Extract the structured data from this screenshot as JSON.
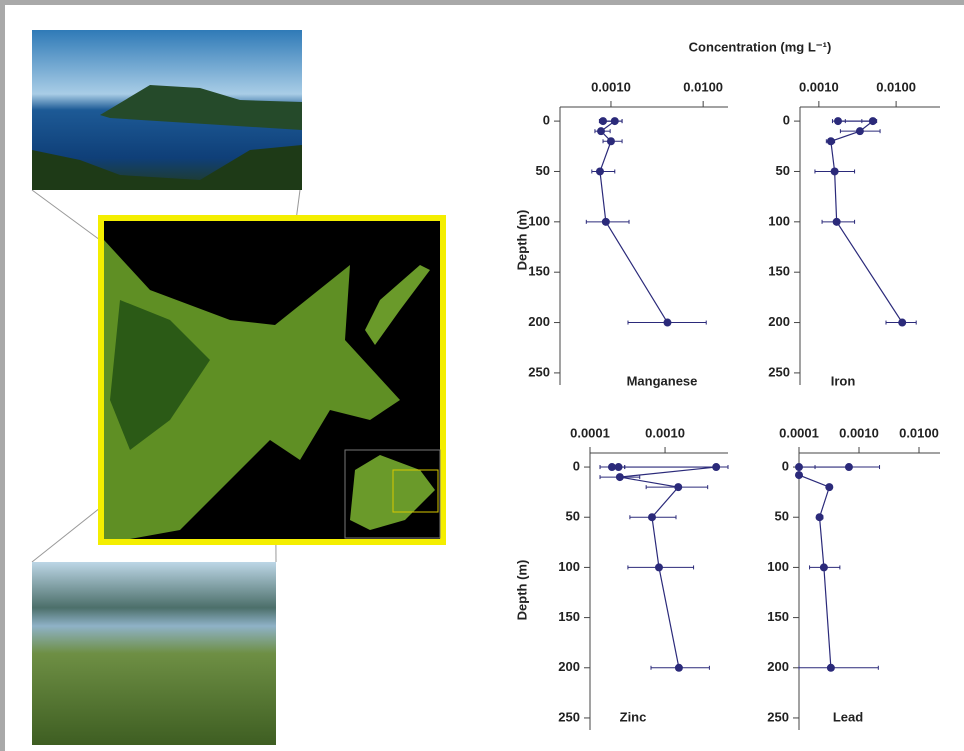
{
  "chart_data": [
    {
      "type": "scatter",
      "title": "Manganese",
      "xlabel": "Concentration (mg L⁻¹)",
      "ylabel": "Depth (m)",
      "log_x": true,
      "color": "#2b2a7a",
      "xlim": [
        0.00028,
        0.0186
      ],
      "xticks": [
        {
          "value": 0.001,
          "label": "0.0010"
        },
        {
          "value": 0.01,
          "label": "0.0100"
        }
      ],
      "ylim": [
        -14,
        262
      ],
      "yticks": [
        0,
        50,
        100,
        150,
        200,
        250
      ],
      "x": [
        0.00082,
        0.0011,
        0.00078,
        0.001,
        0.00076,
        0.00088,
        0.0041
      ],
      "values": [
        0,
        0,
        10,
        20,
        50,
        100,
        200
      ],
      "err_low": [
        0.00075,
        0.00075,
        0.00067,
        0.00082,
        0.00062,
        0.00054,
        0.00153
      ],
      "err_high": [
        0.00132,
        0.00132,
        0.00098,
        0.00132,
        0.0011,
        0.00157,
        0.0108
      ]
    },
    {
      "type": "scatter",
      "title": "Iron",
      "log_x": true,
      "color": "#2b2a7a",
      "xlim": [
        0.00057,
        0.037
      ],
      "xticks": [
        {
          "value": 0.001,
          "label": "0.0010"
        },
        {
          "value": 0.01,
          "label": "0.0100"
        }
      ],
      "ylim": [
        -14,
        262
      ],
      "yticks": [
        0,
        50,
        100,
        150,
        200,
        250
      ],
      "x": [
        0.00177,
        0.005,
        0.0034,
        0.00143,
        0.0016,
        0.0017,
        0.012
      ],
      "values": [
        0,
        0,
        10,
        20,
        50,
        100,
        200
      ],
      "err_low": [
        0.0015,
        0.0036,
        0.0019,
        0.00125,
        0.00089,
        0.0011,
        0.0074
      ],
      "err_high": [
        0.0022,
        0.0056,
        0.0062,
        0.0016,
        0.0029,
        0.0029,
        0.0182
      ]
    },
    {
      "type": "scatter",
      "title": "Zinc",
      "ylabel": "Depth (m)",
      "log_x": true,
      "color": "#2b2a7a",
      "xlim": [
        0.0001,
        0.0069
      ],
      "xticks": [
        {
          "value": 0.0001,
          "label": "0.0001"
        },
        {
          "value": 0.001,
          "label": "0.0010"
        }
      ],
      "ylim": [
        -14,
        262
      ],
      "yticks": [
        0,
        50,
        100,
        150,
        200,
        250
      ],
      "x": [
        0.000196,
        0.00024,
        0.0048,
        0.00025,
        0.0015,
        0.00067,
        0.00083,
        0.00153
      ],
      "values": [
        0,
        0,
        0,
        10,
        20,
        50,
        100,
        200
      ],
      "err_low": [
        0.000136,
        0.0002,
        0.000136,
        0.000136,
        0.00056,
        0.00034,
        0.00032,
        0.00065
      ],
      "err_high": [
        0.00029,
        0.00029,
        0.0069,
        0.00046,
        0.0037,
        0.0014,
        0.0024,
        0.0039
      ]
    },
    {
      "type": "scatter",
      "title": "Lead",
      "log_x": true,
      "color": "#2b2a7a",
      "xlim": [
        0.0001,
        0.0224
      ],
      "xticks": [
        {
          "value": 0.0001,
          "label": "0.0001"
        },
        {
          "value": 0.001,
          "label": "0.0010"
        },
        {
          "value": 0.01,
          "label": "0.0100"
        }
      ],
      "ylim": [
        -14,
        262
      ],
      "yticks": [
        0,
        50,
        100,
        150,
        200,
        250
      ],
      "x": [
        0.00068,
        0.0001,
        0.0001,
        0.00032,
        0.00022,
        0.00026,
        0.00034
      ],
      "values": [
        0,
        0,
        8,
        20,
        50,
        100,
        200
      ],
      "err_low": [
        0.000185,
        0.0001,
        0.0001,
        0.0003,
        0.0002,
        0.00015,
        0.0001
      ],
      "err_high": [
        0.0022,
        0.00011,
        0.00011,
        0.00035,
        0.00025,
        0.00048,
        0.0021
      ]
    }
  ]
}
